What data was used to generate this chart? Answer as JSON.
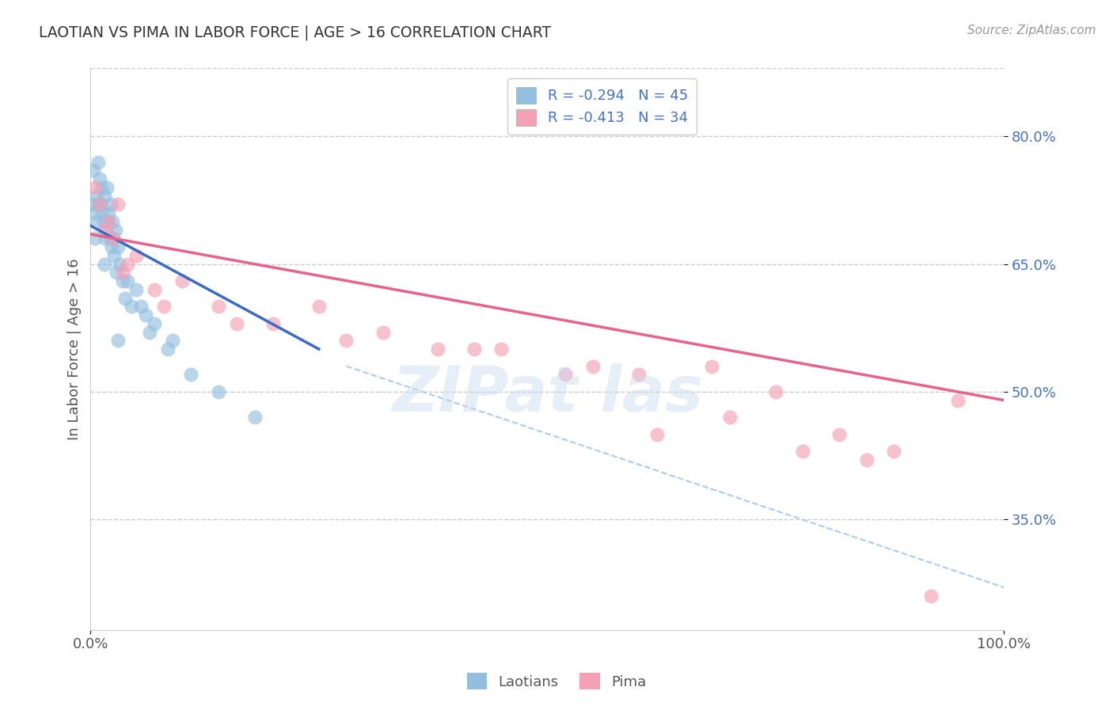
{
  "title": "LAOTIAN VS PIMA IN LABOR FORCE | AGE > 16 CORRELATION CHART",
  "source_text": "Source: ZipAtlas.com",
  "ylabel": "In Labor Force | Age > 16",
  "xlim": [
    0,
    100
  ],
  "ylim": [
    22,
    88
  ],
  "yticks": [
    35.0,
    50.0,
    65.0,
    80.0
  ],
  "xtick_labels": [
    "0.0%",
    "100.0%"
  ],
  "ytick_labels": [
    "35.0%",
    "50.0%",
    "65.0%",
    "80.0%"
  ],
  "laotian_color": "#92BFDF",
  "pima_color": "#F4A0B5",
  "laotian_line_color": "#3B6BC4",
  "pima_line_color": "#E8638A",
  "dashed_line_color": "#9EC4E8",
  "background_color": "#FFFFFF",
  "grid_color": "#CCCCCC",
  "laotian_x": [
    0.2,
    0.3,
    0.4,
    0.5,
    0.6,
    0.7,
    0.8,
    0.9,
    1.0,
    1.1,
    1.2,
    1.3,
    1.4,
    1.5,
    1.6,
    1.7,
    1.8,
    1.9,
    2.0,
    2.1,
    2.2,
    2.3,
    2.4,
    2.5,
    2.6,
    2.7,
    2.8,
    3.0,
    3.2,
    3.5,
    3.8,
    4.0,
    4.5,
    5.0,
    5.5,
    6.0,
    6.5,
    7.0,
    8.5,
    9.0,
    11.0,
    14.0,
    18.0,
    1.5,
    3.0
  ],
  "laotian_y": [
    72,
    76,
    71,
    68,
    73,
    70,
    77,
    72,
    75,
    72,
    74,
    71,
    70,
    73,
    68,
    69,
    74,
    70,
    71,
    68,
    72,
    67,
    70,
    68,
    66,
    69,
    64,
    67,
    65,
    63,
    61,
    63,
    60,
    62,
    60,
    59,
    57,
    58,
    55,
    56,
    52,
    50,
    47,
    65,
    56
  ],
  "pima_x": [
    0.5,
    1.0,
    1.5,
    2.0,
    2.5,
    3.0,
    4.0,
    5.0,
    7.0,
    10.0,
    14.0,
    20.0,
    25.0,
    32.0,
    38.0,
    45.0,
    52.0,
    60.0,
    68.0,
    75.0,
    82.0,
    88.0,
    95.0,
    3.5,
    8.0,
    16.0,
    28.0,
    42.0,
    55.0,
    70.0,
    85.0,
    62.0,
    78.0,
    92.0
  ],
  "pima_y": [
    74,
    72,
    69,
    70,
    68,
    72,
    65,
    66,
    62,
    63,
    60,
    58,
    60,
    57,
    55,
    55,
    52,
    52,
    53,
    50,
    45,
    43,
    49,
    64,
    60,
    58,
    56,
    55,
    53,
    47,
    42,
    45,
    43,
    26
  ],
  "blue_line_x0": 0,
  "blue_line_y0": 69.5,
  "blue_line_x1": 25,
  "blue_line_y1": 55.0,
  "pink_line_x0": 0,
  "pink_line_y0": 68.5,
  "pink_line_x1": 100,
  "pink_line_y1": 49.0,
  "dash_line_x0": 28,
  "dash_line_y0": 53.0,
  "dash_line_x1": 100,
  "dash_line_y1": 27.0
}
